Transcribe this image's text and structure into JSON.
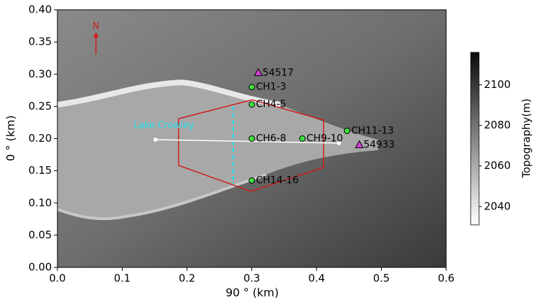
{
  "chart_data": {
    "type": "scatter",
    "xlabel": "90 ° (km)",
    "ylabel": "0 ° (km)",
    "xlim": [
      0,
      0.6
    ],
    "ylim": [
      0,
      0.4
    ],
    "xticks": [
      {
        "value": 0,
        "label": "0.0"
      },
      0.1,
      0.2,
      0.3,
      0.4,
      0.5,
      0.6
    ],
    "yticks": [
      {
        "value": 0,
        "label": "0.00"
      },
      0.05,
      {
        "value": 0.1,
        "label": "0.10"
      },
      0.15,
      {
        "value": 0.2,
        "label": "0.20"
      },
      0.25,
      {
        "value": 0.3,
        "label": "0.30"
      },
      0.35,
      {
        "value": 0.4,
        "label": "0.40"
      }
    ],
    "annotations": {
      "lake": "Lake Crowley",
      "north": "N"
    },
    "points": [
      {
        "name": "54517",
        "x": 0.31,
        "y": 0.302,
        "marker": "triangle",
        "color": "#d63fd6"
      },
      {
        "name": "CH1-3",
        "x": 0.3,
        "y": 0.28,
        "marker": "circle",
        "color": "#3ee03e"
      },
      {
        "name": "CH4-5",
        "x": 0.3,
        "y": 0.253,
        "marker": "circle",
        "color": "#3ee03e"
      },
      {
        "name": "CH6-8",
        "x": 0.3,
        "y": 0.2,
        "marker": "circle",
        "color": "#3ee03e"
      },
      {
        "name": "CH9-10",
        "x": 0.378,
        "y": 0.2,
        "marker": "circle",
        "color": "#3ee03e"
      },
      {
        "name": "CH11-13",
        "x": 0.447,
        "y": 0.212,
        "marker": "circle",
        "color": "#3ee03e"
      },
      {
        "name": "54933",
        "x": 0.466,
        "y": 0.19,
        "marker": "triangle",
        "color": "#d63fd6"
      },
      {
        "name": "CH14-16",
        "x": 0.3,
        "y": 0.135,
        "marker": "circle",
        "color": "#3ee03e"
      }
    ],
    "colorbar": {
      "label": "Topography(m)",
      "clim": [
        2031,
        2116
      ],
      "ticks": [
        2040,
        2060,
        2080,
        2100
      ]
    }
  }
}
